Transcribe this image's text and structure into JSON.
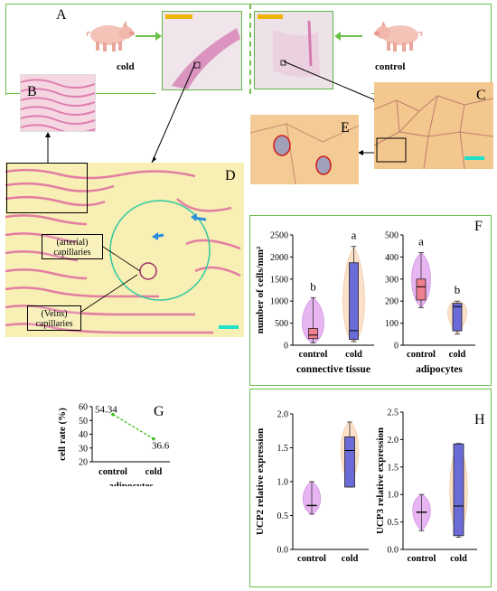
{
  "panels": {
    "A": "A",
    "B": "B",
    "C": "C",
    "D": "D",
    "E": "E",
    "F": "F",
    "G": "G",
    "H": "H"
  },
  "panel_a": {
    "cold_label": "cold",
    "control_label": "control"
  },
  "panel_d": {
    "arterial_label": "(arterial) capillaries",
    "venous_label": "(Velns) capillaries"
  },
  "colors": {
    "border_green": "#6cc04a",
    "control_fill": "#f08090",
    "cold_fill": "#6b6bd8",
    "violin_control": "#e6b3f2",
    "violin_cold": "#fbe0c8",
    "scale_yellow": "#f0b400",
    "scale_cyan": "#20e0c8",
    "arrow_blue": "#2b8ee0",
    "dashed_green": "#3cc01c"
  },
  "chart_data": [
    {
      "id": "F-left",
      "type": "box-violin",
      "ylabel": "number of cells/mm²",
      "xlabel": "connective tissue",
      "categories": [
        "control",
        "cold"
      ],
      "ylim": [
        0,
        2500
      ],
      "yticks": [
        0,
        500,
        1000,
        1500,
        2000,
        2500
      ],
      "series": [
        {
          "name": "control",
          "min": 50,
          "q1": 150,
          "median": 230,
          "q3": 380,
          "max": 1080,
          "letter": "b"
        },
        {
          "name": "cold",
          "min": 80,
          "q1": 130,
          "median": 330,
          "q3": 1870,
          "max": 2240,
          "letter": "a"
        }
      ]
    },
    {
      "id": "F-right",
      "type": "box-violin",
      "xlabel": "adipocytes",
      "categories": [
        "control",
        "cold"
      ],
      "ylim": [
        0,
        500
      ],
      "yticks": [
        0,
        100,
        200,
        300,
        400,
        500
      ],
      "series": [
        {
          "name": "control",
          "min": 170,
          "q1": 205,
          "median": 265,
          "q3": 300,
          "max": 420,
          "letter": "a"
        },
        {
          "name": "cold",
          "min": 50,
          "q1": 65,
          "median": 175,
          "q3": 190,
          "max": 200,
          "letter": "b"
        }
      ]
    },
    {
      "id": "G",
      "type": "line",
      "ylabel": "cell rate (%)",
      "xlabel": "adipocytes",
      "categories": [
        "control",
        "cold"
      ],
      "values": [
        54.34,
        36.6
      ],
      "value_labels": [
        "54.34",
        "36.6"
      ],
      "ylim": [
        20,
        60
      ],
      "yticks": [
        20,
        30,
        40,
        50,
        60
      ]
    },
    {
      "id": "H-left",
      "type": "box-violin",
      "ylabel": "UCP2 relative expression",
      "categories": [
        "control",
        "cold"
      ],
      "ylim": [
        0,
        2.0
      ],
      "yticks": [
        "0.0",
        "0.5",
        "1.0",
        "1.5",
        "2.0"
      ],
      "series": [
        {
          "name": "control",
          "min": 0.52,
          "q1": 0.65,
          "median": 0.65,
          "q3": 0.65,
          "max": 1.0
        },
        {
          "name": "cold",
          "min": 0.92,
          "q1": 0.92,
          "median": 1.46,
          "q3": 1.66,
          "max": 1.88
        }
      ]
    },
    {
      "id": "H-right",
      "type": "box-violin",
      "ylabel": "UCP3 relative expression",
      "categories": [
        "control",
        "cold"
      ],
      "ylim": [
        0,
        2.5
      ],
      "yticks": [
        "0.0",
        "0.5",
        "1.0",
        "1.5",
        "2.0",
        "2.5"
      ],
      "series": [
        {
          "name": "control",
          "min": 0.34,
          "q1": 0.68,
          "median": 0.68,
          "q3": 0.68,
          "max": 1.0
        },
        {
          "name": "cold",
          "min": 0.22,
          "q1": 0.25,
          "median": 0.79,
          "q3": 1.92,
          "max": 1.93
        }
      ]
    }
  ]
}
